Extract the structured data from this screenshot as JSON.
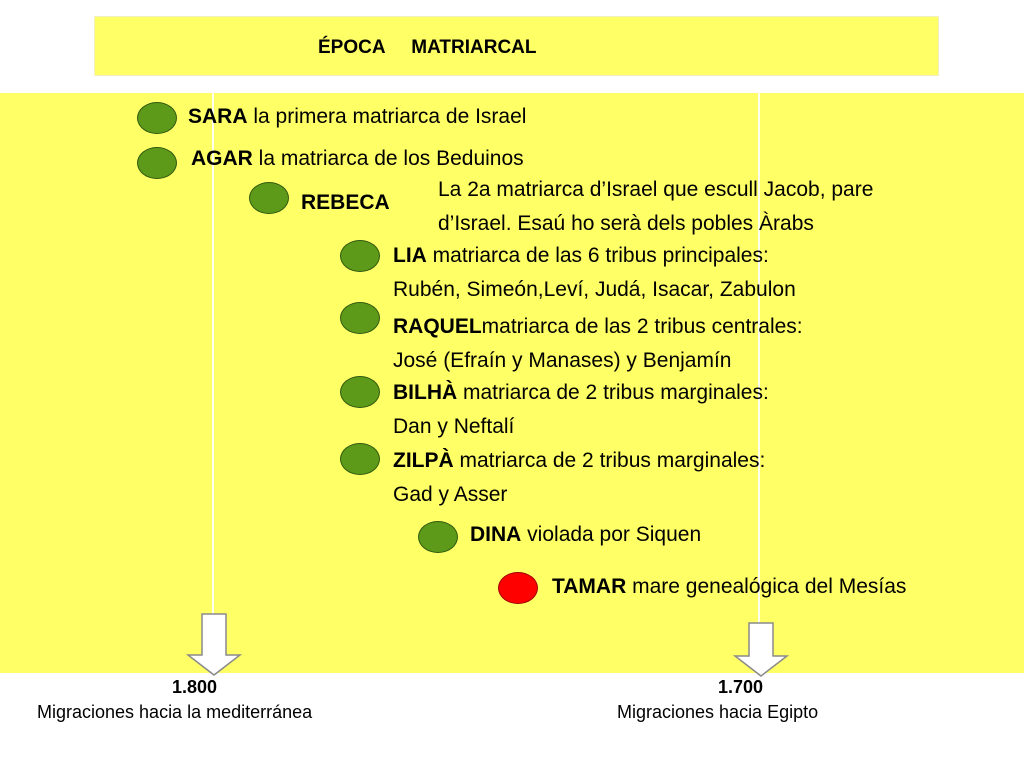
{
  "title": "ÉPOCA     MATRIARCAL",
  "rows": [
    {
      "name": "SARA",
      "desc": " la primera matriarca de Israel",
      "color": "#5d9a1a"
    },
    {
      "name": "AGAR",
      "desc": " la matriarca de los Beduinos",
      "color": "#5d9a1a"
    },
    {
      "name": "REBECA",
      "desc": "",
      "color": "#5d9a1a"
    },
    {
      "name": "LIA",
      "desc": " matriarca de las 6 tribus principales:",
      "line2": "Rubén, Simeón,Leví, Judá, Isacar, Zabulon",
      "color": "#5d9a1a"
    },
    {
      "name": "RAQUEL",
      "desc": "matriarca de las 2 tribus centrales:",
      "line2": "José (Efraín y Manases) y Benjamín",
      "color": "#5d9a1a"
    },
    {
      "name": "BILHÀ",
      "desc": " matriarca de 2 tribus marginales:",
      "line2": "Dan y Neftalí",
      "color": "#5d9a1a"
    },
    {
      "name": "ZILPÀ",
      "desc": " matriarca de 2 tribus marginales:",
      "line2": "Gad y Asser",
      "color": "#5d9a1a"
    },
    {
      "name": "DINA",
      "desc": " violada  por Siquen",
      "color": "#5d9a1a"
    },
    {
      "name": "TAMAR",
      "desc": " mare genealógica del Mesías",
      "color": "#ff0000"
    }
  ],
  "rebeca_note": {
    "line1": "La 2a matriarca d’Israel que escull Jacob, pare",
    "line2": "d’Israel. Esaú ho serà dels pobles Àrabs"
  },
  "markers": [
    {
      "date": "1.800",
      "caption": "Migraciones hacia la mediterránea"
    },
    {
      "date": "1.700",
      "caption": "Migraciones hacia Egipto"
    }
  ]
}
